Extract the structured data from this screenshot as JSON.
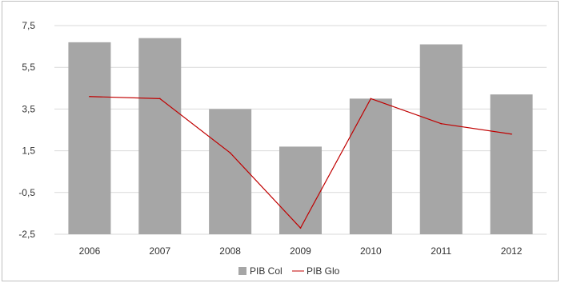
{
  "chart_data": {
    "type": "bar",
    "categories": [
      "2006",
      "2007",
      "2008",
      "2009",
      "2010",
      "2011",
      "2012"
    ],
    "series": [
      {
        "name": "PIB Col",
        "kind": "bar",
        "color": "#a6a6a6",
        "values": [
          6.7,
          6.9,
          3.5,
          1.7,
          4.0,
          6.6,
          4.2
        ]
      },
      {
        "name": "PIB Glo",
        "kind": "line",
        "color": "#c00000",
        "values": [
          4.1,
          4.0,
          1.4,
          -2.2,
          4.0,
          2.8,
          2.3
        ]
      }
    ],
    "y_ticks": [
      "7,5",
      "5,5",
      "3,5",
      "1,5",
      "-0,5",
      "-2,5"
    ],
    "y_tick_values": [
      7.5,
      5.5,
      3.5,
      1.5,
      -0.5,
      -2.5
    ],
    "ylim": [
      -2.5,
      7.5
    ],
    "grid": "horizontal",
    "legend_position": "bottom"
  }
}
